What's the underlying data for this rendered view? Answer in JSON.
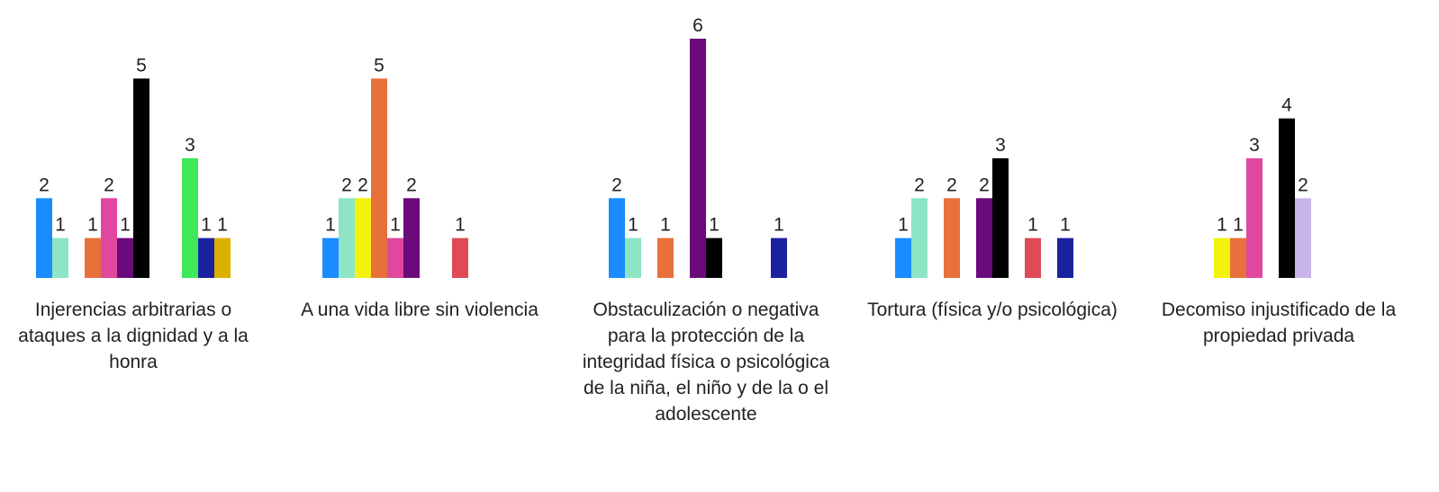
{
  "chart_data": {
    "type": "bar",
    "categories": [
      "Injerencias arbitrarias o ataques a la dignidad y a la honra",
      "A una vida libre sin violencia",
      "Obstaculización o negativa para la protección de la integridad física o psicológica de la niña, el niño y de la o el adolescente",
      "Tortura (física y/o psicológica)",
      "Decomiso injustificado de la propiedad privada"
    ],
    "series": [
      {
        "color": "#1a8cff",
        "values": [
          2,
          1,
          2,
          1,
          null
        ]
      },
      {
        "color": "#8de5c5",
        "values": [
          1,
          2,
          1,
          2,
          null
        ]
      },
      {
        "color": "#f2f20d",
        "values": [
          null,
          2,
          null,
          null,
          1
        ]
      },
      {
        "color": "#e8703a",
        "values": [
          1,
          5,
          1,
          2,
          1
        ]
      },
      {
        "color": "#e2479f",
        "values": [
          2,
          1,
          null,
          null,
          3
        ]
      },
      {
        "color": "#6b0a7a",
        "values": [
          1,
          2,
          6,
          2,
          null
        ]
      },
      {
        "color": "#000000",
        "values": [
          5,
          null,
          1,
          3,
          4
        ]
      },
      {
        "color": "#c8b5e8",
        "values": [
          null,
          null,
          null,
          null,
          2
        ]
      },
      {
        "color": "#de4a55",
        "values": [
          null,
          1,
          null,
          1,
          null
        ]
      },
      {
        "color": "#3ee85a",
        "values": [
          3,
          null,
          null,
          null,
          null
        ]
      },
      {
        "color": "#1a22a0",
        "values": [
          1,
          null,
          1,
          1,
          null
        ]
      },
      {
        "color": "#dcb000",
        "values": [
          1,
          null,
          null,
          null,
          null
        ]
      }
    ],
    "ylim": [
      0,
      6
    ]
  }
}
